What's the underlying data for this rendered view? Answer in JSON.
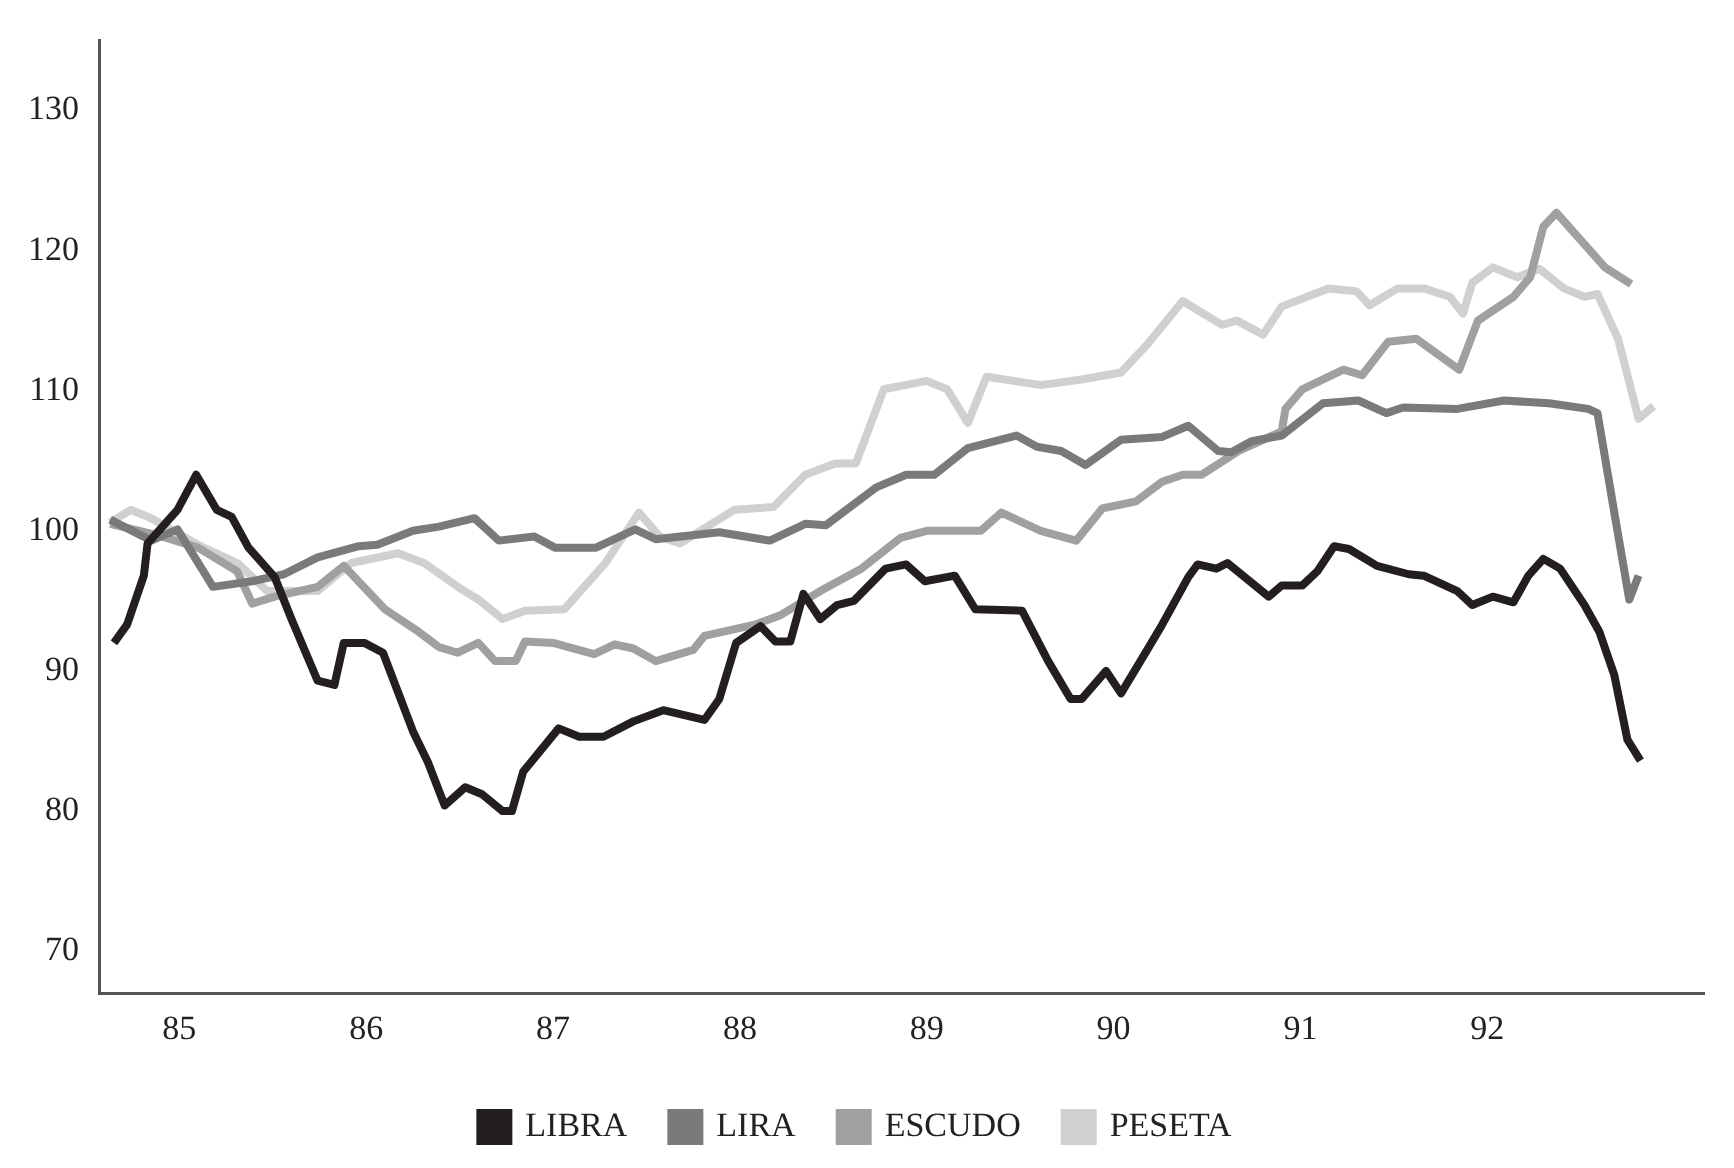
{
  "chart_data": {
    "type": "line",
    "xlim": [
      84.57,
      93.16
    ],
    "ylim": [
      67,
      135
    ],
    "xticks": [
      85,
      86,
      87,
      88,
      89,
      90,
      91,
      92
    ],
    "yticks": [
      70,
      80,
      90,
      100,
      110,
      120,
      130
    ],
    "grid": false,
    "legend": "bottom",
    "marker": "none",
    "line_style": "solid",
    "series": [
      {
        "name": "LIBRA",
        "color": "#231f20",
        "x": [
          84.65,
          84.72,
          84.81,
          84.83,
          84.99,
          85.09,
          85.2,
          85.28,
          85.37,
          85.51,
          85.6,
          85.74,
          85.83,
          85.88,
          85.99,
          86.09,
          86.25,
          86.33,
          86.42,
          86.53,
          86.62,
          86.73,
          86.78,
          86.84,
          87.03,
          87.14,
          87.27,
          87.43,
          87.59,
          87.81,
          87.89,
          87.98,
          88.11,
          88.19,
          88.27,
          88.34,
          88.43,
          88.52,
          88.61,
          88.78,
          88.89,
          88.99,
          89.15,
          89.26,
          89.51,
          89.65,
          89.77,
          89.83,
          89.96,
          90.04,
          90.18,
          90.26,
          90.4,
          90.45,
          90.55,
          90.61,
          90.83,
          90.9,
          91.01,
          91.09,
          91.18,
          91.26,
          91.41,
          91.58,
          91.66,
          91.84,
          91.92,
          92.03,
          92.14,
          92.22,
          92.3,
          92.39,
          92.52,
          92.6,
          92.68,
          92.75,
          92.82
        ],
        "values": [
          92,
          93.3,
          96.8,
          99.1,
          101.5,
          104,
          101.5,
          101,
          98.8,
          96.7,
          93.7,
          89.3,
          89,
          92,
          92,
          91.3,
          85.7,
          83.5,
          80.4,
          81.7,
          81.2,
          80,
          80,
          82.8,
          85.9,
          85.3,
          85.3,
          86.4,
          87.2,
          86.5,
          88,
          92,
          93.2,
          92.1,
          92.1,
          95.5,
          93.7,
          94.7,
          95,
          97.3,
          97.6,
          96.4,
          96.8,
          94.4,
          94.3,
          90.7,
          88,
          88,
          90,
          88.4,
          91.5,
          93.3,
          96.7,
          97.6,
          97.3,
          97.7,
          95.3,
          96.1,
          96.1,
          97.1,
          98.9,
          98.7,
          97.5,
          96.9,
          96.8,
          95.7,
          94.7,
          95.3,
          94.9,
          96.8,
          98,
          97.3,
          94.7,
          92.8,
          89.7,
          85.1,
          83.6
        ]
      },
      {
        "name": "LIRA",
        "color": "#7a7a7c",
        "x": [
          84.63,
          84.85,
          84.99,
          85.18,
          85.39,
          85.56,
          85.74,
          85.96,
          86.06,
          86.25,
          86.39,
          86.58,
          86.71,
          86.9,
          87.01,
          87.23,
          87.44,
          87.55,
          87.89,
          88.16,
          88.35,
          88.46,
          88.73,
          88.89,
          89.04,
          89.22,
          89.48,
          89.59,
          89.72,
          89.85,
          90.04,
          90.26,
          90.4,
          90.56,
          90.63,
          90.74,
          90.9,
          91.12,
          91.31,
          91.46,
          91.55,
          91.84,
          92.09,
          92.33,
          92.54,
          92.59,
          92.68,
          92.76,
          92.81
        ],
        "values": [
          100.8,
          99.3,
          100.1,
          96,
          96.4,
          96.9,
          98.1,
          98.9,
          99,
          100,
          100.3,
          100.9,
          99.3,
          99.6,
          98.8,
          98.8,
          100.1,
          99.4,
          99.9,
          99.3,
          100.5,
          100.4,
          103.1,
          104,
          104,
          105.9,
          106.8,
          106,
          105.7,
          104.7,
          106.5,
          106.7,
          107.5,
          105.7,
          105.6,
          106.4,
          106.8,
          109.1,
          109.3,
          108.4,
          108.8,
          108.7,
          109.3,
          109.1,
          108.7,
          108.4,
          101.3,
          95.1,
          96.8
        ]
      },
      {
        "name": "ESCUDO",
        "color": "#a0a0a2",
        "x": [
          84.63,
          84.88,
          85.1,
          85.31,
          85.39,
          85.51,
          85.74,
          85.88,
          86.1,
          86.28,
          86.39,
          86.49,
          86.6,
          86.69,
          86.8,
          86.85,
          87,
          87.22,
          87.33,
          87.43,
          87.55,
          87.75,
          87.81,
          88.08,
          88.22,
          88.43,
          88.65,
          88.86,
          89,
          89.29,
          89.4,
          89.61,
          89.8,
          89.94,
          90.12,
          90.26,
          90.37,
          90.47,
          90.67,
          90.9,
          90.92,
          91.01,
          91.23,
          91.33,
          91.47,
          91.62,
          91.85,
          91.95,
          92.14,
          92.23,
          92.3,
          92.37,
          92.63,
          92.77
        ],
        "values": [
          100.5,
          99.7,
          98.8,
          97.1,
          94.8,
          95.3,
          96,
          97.5,
          94.4,
          92.8,
          91.7,
          91.3,
          92,
          90.7,
          90.7,
          92.1,
          92,
          91.2,
          91.9,
          91.6,
          90.7,
          91.5,
          92.5,
          93.3,
          94,
          95.7,
          97.3,
          99.5,
          100,
          100,
          101.3,
          100,
          99.3,
          101.6,
          102.1,
          103.5,
          104,
          104,
          105.7,
          107.1,
          108.7,
          110.1,
          111.5,
          111.1,
          113.5,
          113.7,
          111.5,
          115,
          116.7,
          118.1,
          121.7,
          122.7,
          118.8,
          117.6
        ]
      },
      {
        "name": "PESETA",
        "color": "#d0d0d2",
        "x": [
          84.63,
          84.74,
          84.85,
          85.1,
          85.31,
          85.47,
          85.74,
          85.92,
          86.17,
          86.31,
          86.49,
          86.6,
          86.73,
          86.85,
          87.06,
          87.28,
          87.46,
          87.57,
          87.68,
          87.97,
          88.18,
          88.35,
          88.51,
          88.62,
          88.77,
          89,
          89.11,
          89.22,
          89.32,
          89.61,
          89.83,
          90.04,
          90.18,
          90.37,
          90.58,
          90.66,
          90.8,
          90.9,
          91.15,
          91.3,
          91.37,
          91.52,
          91.66,
          91.8,
          91.87,
          91.92,
          92.03,
          92.16,
          92.28,
          92.41,
          92.52,
          92.59,
          92.7,
          92.81,
          92.89
        ],
        "values": [
          100.6,
          101.5,
          100.9,
          99,
          97.7,
          95.7,
          95.7,
          97.7,
          98.4,
          97.7,
          96,
          95.1,
          93.7,
          94.3,
          94.4,
          97.7,
          101.3,
          99.6,
          99.1,
          101.5,
          101.7,
          104,
          104.8,
          104.8,
          110.1,
          110.7,
          110.1,
          107.7,
          111,
          110.4,
          110.8,
          111.3,
          113.3,
          116.4,
          114.7,
          115,
          114,
          116,
          117.3,
          117.1,
          116.1,
          117.3,
          117.3,
          116.7,
          115.5,
          117.7,
          118.8,
          118.1,
          118.7,
          117.3,
          116.7,
          116.9,
          113.7,
          108,
          108.9
        ]
      }
    ]
  }
}
